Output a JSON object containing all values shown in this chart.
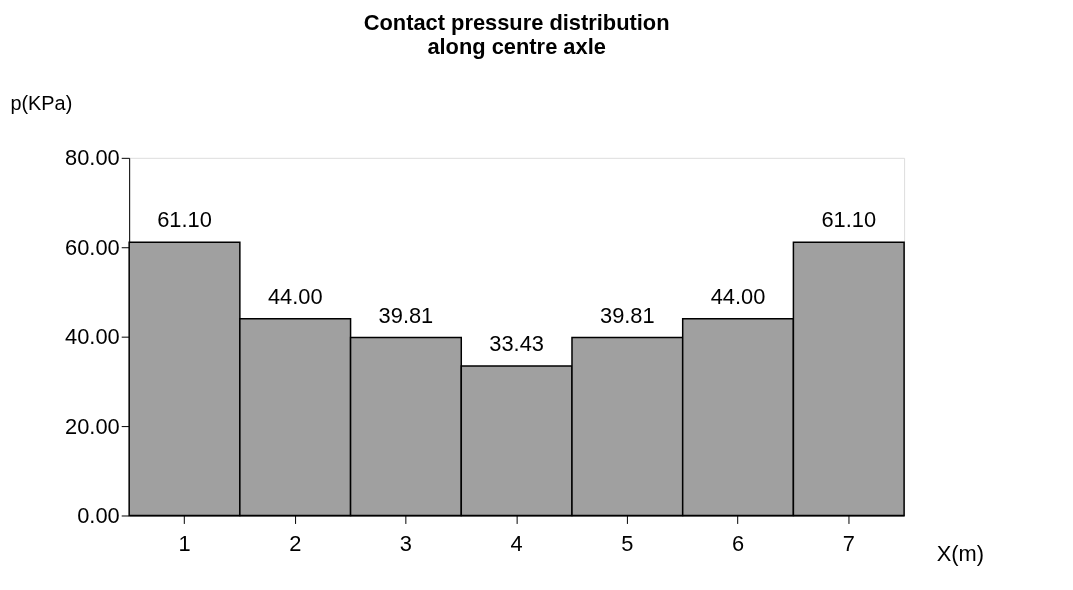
{
  "chart_data": {
    "type": "bar",
    "title": "Contact pressure distribution along centre axle",
    "xlabel": "X(m)",
    "ylabel": "p(KPa)",
    "categories": [
      "1",
      "2",
      "3",
      "4",
      "5",
      "6",
      "7"
    ],
    "values": [
      61.1,
      44.0,
      39.81,
      33.43,
      39.81,
      44.0,
      61.1
    ],
    "value_labels": [
      "61.10",
      "44.00",
      "39.81",
      "33.43",
      "39.81",
      "44.00",
      "61.10"
    ],
    "color": "#a0a0a0",
    "ylim": [
      0,
      80
    ],
    "yticks": [
      {
        "value": 0,
        "label": "0.00"
      },
      {
        "value": 20,
        "label": "20.00"
      },
      {
        "value": 40,
        "label": "40.00"
      },
      {
        "value": 60,
        "label": "60.00"
      },
      {
        "value": 80,
        "label": "80.00"
      }
    ],
    "grid": false
  }
}
